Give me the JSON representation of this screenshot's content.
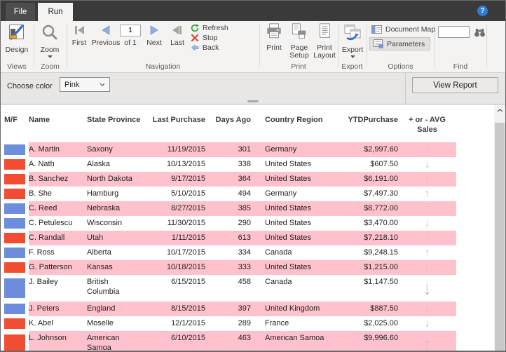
{
  "titlebar": {
    "file_tab": "File",
    "run_tab": "Run",
    "help_label": "?"
  },
  "ribbon": {
    "views": {
      "group_label": "Views",
      "design_label": "Design"
    },
    "zoom": {
      "group_label": "Zoom",
      "zoom_label": "Zoom"
    },
    "navigation": {
      "group_label": "Navigation",
      "first_label": "First",
      "previous_label": "Previous",
      "page_value": "1",
      "of_label": "of 1",
      "next_label": "Next",
      "last_label": "Last",
      "refresh_label": "Refresh",
      "stop_label": "Stop",
      "back_label": "Back"
    },
    "print": {
      "group_label": "Print",
      "print_label": "Print",
      "page_setup_label": "Page Setup",
      "print_layout_label": "Print Layout"
    },
    "export": {
      "group_label": "Export",
      "export_label": "Export"
    },
    "options": {
      "group_label": "Options",
      "document_map_label": "Document Map",
      "parameters_label": "Parameters"
    },
    "find": {
      "group_label": "Find",
      "search_value": ""
    }
  },
  "parameters_bar": {
    "choose_color_label": "Choose color",
    "color_value": "Pink",
    "view_report_label": "View Report"
  },
  "icons": {
    "trend_up": "↑",
    "trend_down": "↓"
  },
  "table": {
    "headers": {
      "mf": "M/F",
      "name": "Name",
      "state": "State Province",
      "last_purchase": "Last Purchase",
      "days_ago": "Days Ago",
      "country": "Country Region",
      "ytd": "YTDPurchase",
      "avg": "+ or - AVG Sales"
    },
    "gender_colors": {
      "blue": "#6c8edb",
      "red": "#f14d34"
    },
    "highlight_color": "#ffc2cd",
    "rows": [
      {
        "gender": "blue",
        "name": "A. Martin",
        "state": "Saxony",
        "last_purchase": "11/19/2015",
        "days_ago": "301",
        "country": "Germany",
        "ytd": "$2,997.60",
        "trend": "down",
        "highlight": true,
        "tall": false
      },
      {
        "gender": "red",
        "name": "A. Nath",
        "state": "Alaska",
        "last_purchase": "10/13/2015",
        "days_ago": "338",
        "country": "United States",
        "ytd": "$607.50",
        "trend": "down",
        "highlight": false,
        "tall": false
      },
      {
        "gender": "red",
        "name": "B. Sanchez",
        "state": "North Dakota",
        "last_purchase": "9/17/2015",
        "days_ago": "364",
        "country": "United States",
        "ytd": "$6,191.00",
        "trend": "up",
        "highlight": true,
        "tall": false
      },
      {
        "gender": "red",
        "name": "B. She",
        "state": "Hamburg",
        "last_purchase": "5/10/2015",
        "days_ago": "494",
        "country": "Germany",
        "ytd": "$7,497.30",
        "trend": "up",
        "highlight": false,
        "tall": false
      },
      {
        "gender": "blue",
        "name": "C. Reed",
        "state": "Nebraska",
        "last_purchase": "8/27/2015",
        "days_ago": "385",
        "country": "United States",
        "ytd": "$8,772.00",
        "trend": "up",
        "highlight": true,
        "tall": false
      },
      {
        "gender": "blue",
        "name": "C. Petulescu",
        "state": "Wisconsin",
        "last_purchase": "11/30/2015",
        "days_ago": "290",
        "country": "United States",
        "ytd": "$3,470.00",
        "trend": "down",
        "highlight": false,
        "tall": false
      },
      {
        "gender": "red",
        "name": "C. Randall",
        "state": "Utah",
        "last_purchase": "1/11/2015",
        "days_ago": "613",
        "country": "United States",
        "ytd": "$7,218.10",
        "trend": "up",
        "highlight": true,
        "tall": false
      },
      {
        "gender": "blue",
        "name": "F. Ross",
        "state": "Alberta",
        "last_purchase": "10/17/2015",
        "days_ago": "334",
        "country": "Canada",
        "ytd": "$9,248.15",
        "trend": "up",
        "highlight": false,
        "tall": false
      },
      {
        "gender": "red",
        "name": "G. Patterson",
        "state": "Kansas",
        "last_purchase": "10/18/2015",
        "days_ago": "333",
        "country": "United States",
        "ytd": "$1,215.00",
        "trend": "down",
        "highlight": true,
        "tall": false
      },
      {
        "gender": "blue",
        "name": "J. Bailey",
        "state": "British Columbia",
        "last_purchase": "6/15/2015",
        "days_ago": "458",
        "country": "Canada",
        "ytd": "$1,147.50",
        "trend": "down",
        "highlight": false,
        "tall": true
      },
      {
        "gender": "blue",
        "name": "J. Peters",
        "state": "England",
        "last_purchase": "8/15/2015",
        "days_ago": "397",
        "country": "United Kingdom",
        "ytd": "$887.50",
        "trend": "down",
        "highlight": true,
        "tall": false
      },
      {
        "gender": "red",
        "name": "K. Abel",
        "state": "Moselle",
        "last_purchase": "12/1/2015",
        "days_ago": "289",
        "country": "France",
        "ytd": "$2,025.00",
        "trend": "down",
        "highlight": false,
        "tall": false
      },
      {
        "gender": "red",
        "name": "L. Johnson",
        "state": "American Samoa",
        "last_purchase": "6/10/2015",
        "days_ago": "463",
        "country": "American Samoa",
        "ytd": "$9,996.60",
        "trend": "up",
        "highlight": true,
        "tall": true
      }
    ]
  }
}
